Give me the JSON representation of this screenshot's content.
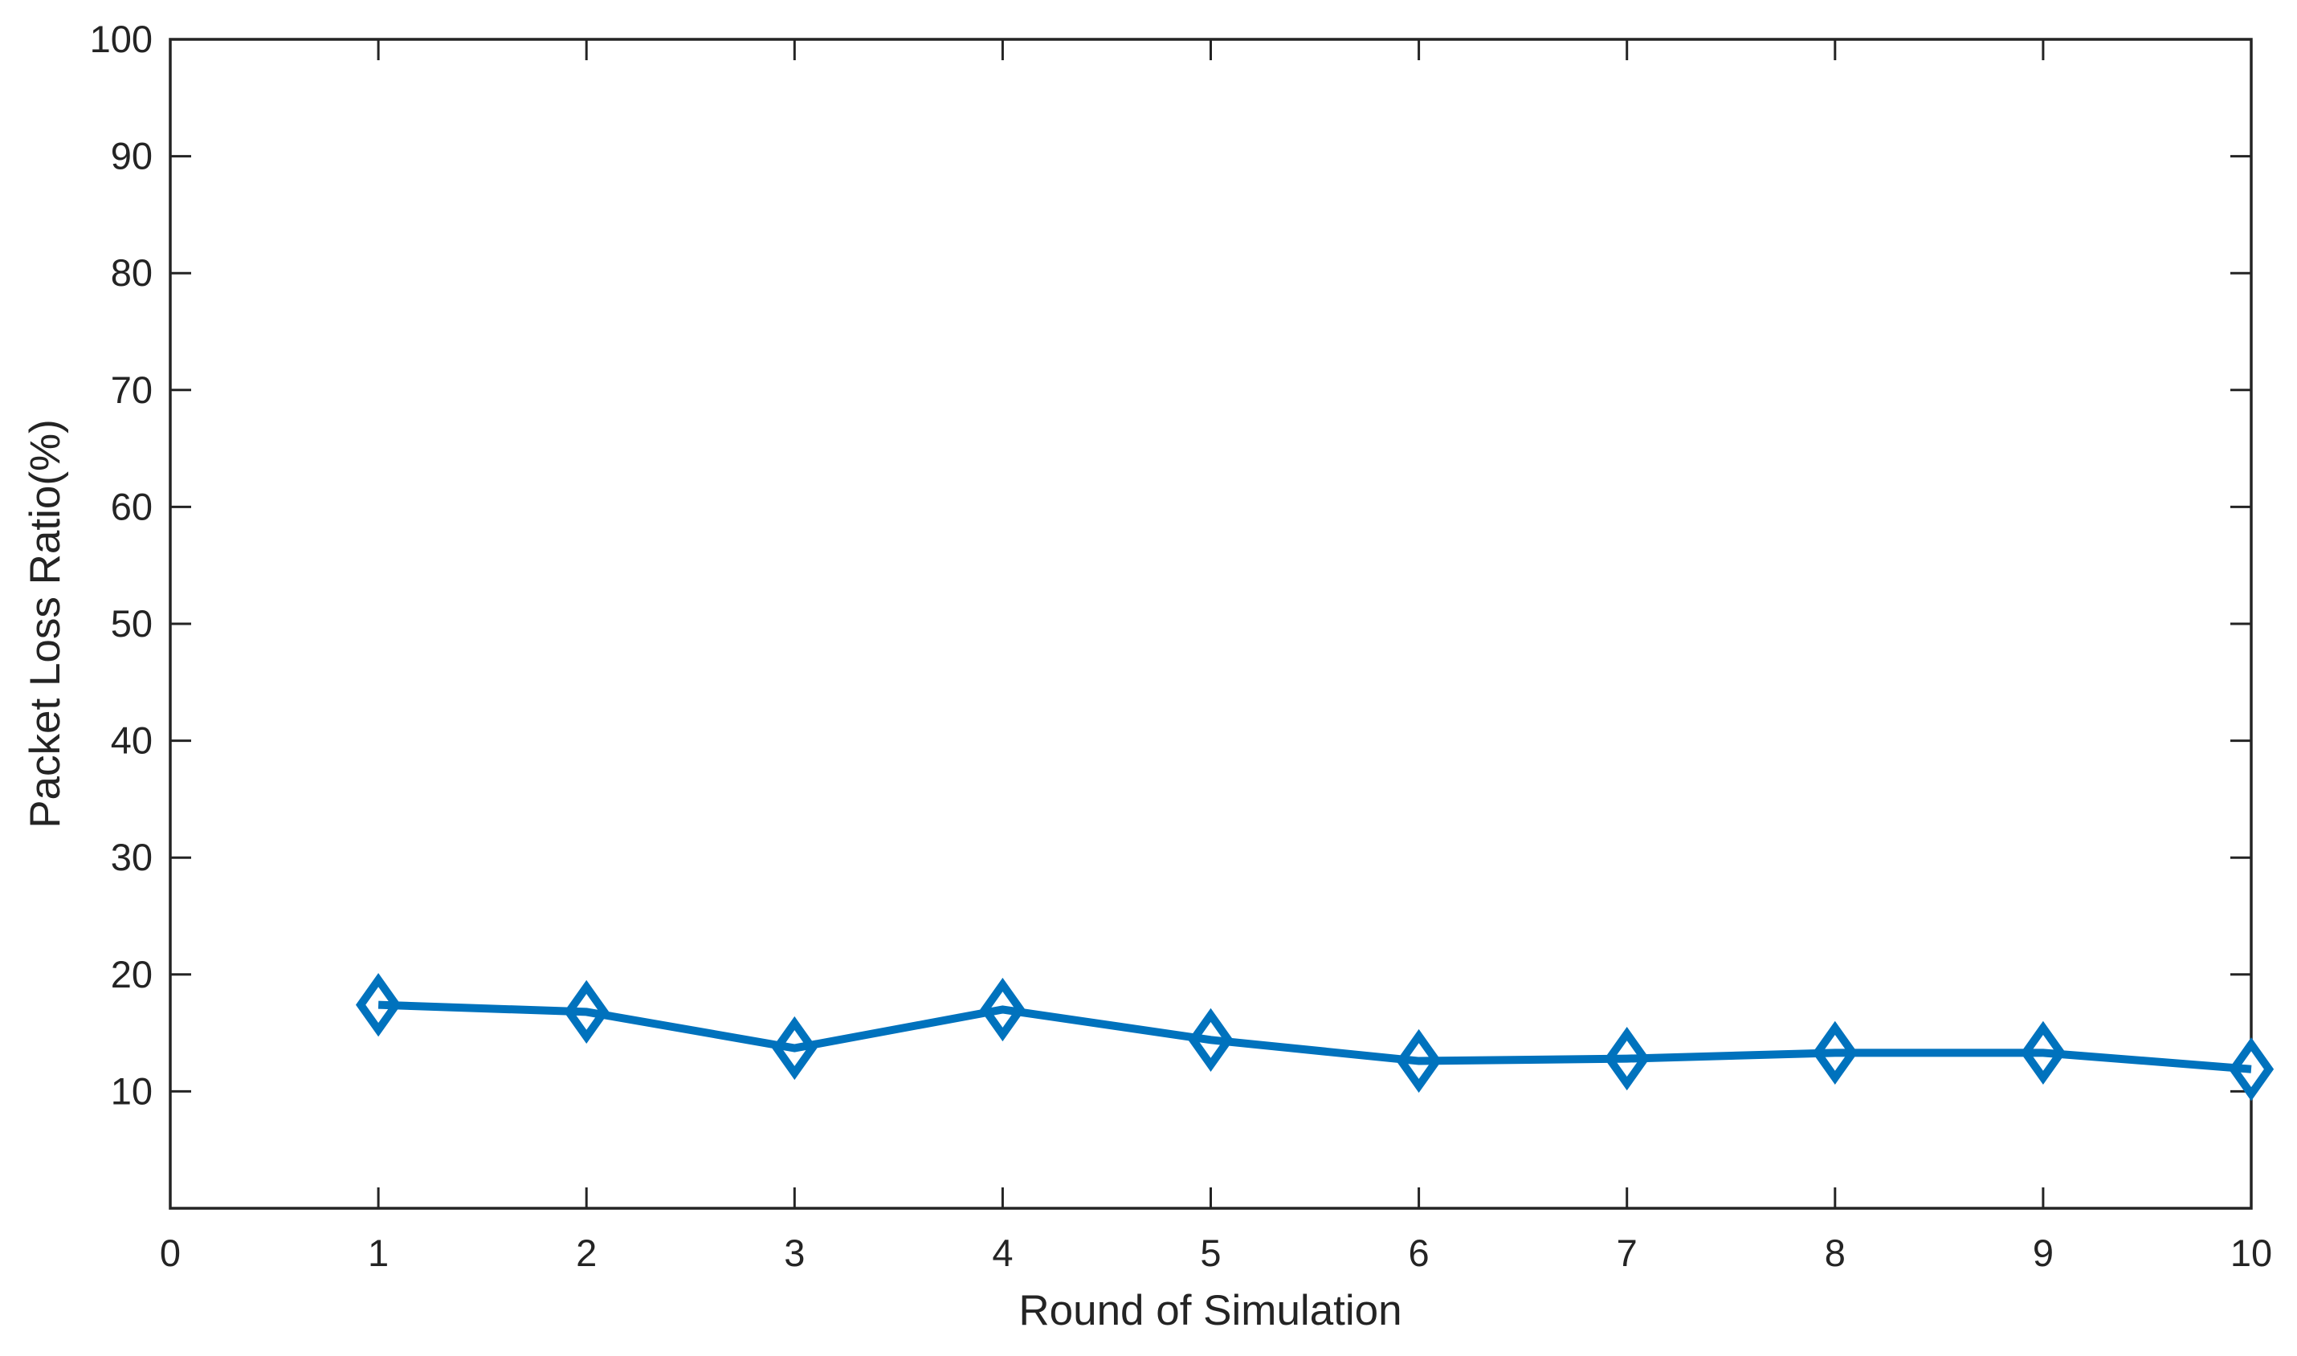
{
  "chart_data": {
    "type": "line",
    "title": "",
    "xlabel": "Round of Simulation",
    "ylabel": "Packet Loss Ratio(%)",
    "x": [
      1,
      2,
      3,
      4,
      5,
      6,
      7,
      8,
      9,
      10
    ],
    "values": [
      17.4,
      16.8,
      13.7,
      17.0,
      14.4,
      12.6,
      12.8,
      13.3,
      13.3,
      11.9
    ],
    "xlim": [
      0,
      10
    ],
    "ylim": [
      0,
      100
    ],
    "xticks": [
      0,
      1,
      2,
      3,
      4,
      5,
      6,
      7,
      8,
      9,
      10
    ],
    "xtick_labels": [
      "0",
      "1",
      "2",
      "3",
      "4",
      "5",
      "6",
      "7",
      "8",
      "9",
      "10"
    ],
    "yticks": [
      10,
      20,
      30,
      40,
      50,
      60,
      70,
      80,
      90,
      100
    ],
    "ytick_labels": [
      "10",
      "20",
      "30",
      "40",
      "50",
      "60",
      "70",
      "80",
      "90",
      "100"
    ],
    "grid": false,
    "legend": "none",
    "box": true,
    "tick_direction": "in",
    "marker": "diamond",
    "colors": {
      "line": "#0072BD",
      "marker_edge": "#0072BD",
      "marker_face": "#ffffff",
      "axis": "#242424",
      "background": "#ffffff"
    }
  }
}
